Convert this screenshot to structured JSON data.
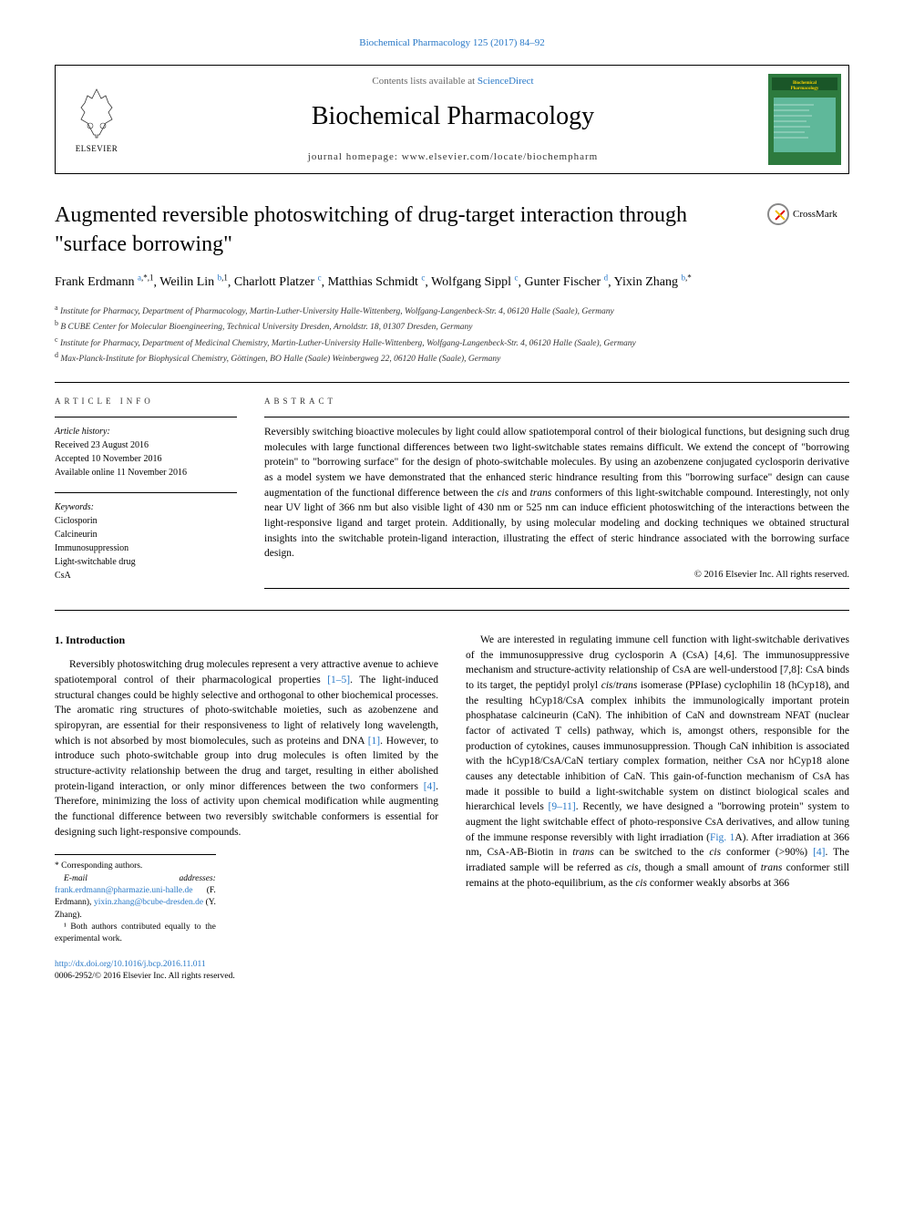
{
  "topLink": {
    "text": "Biochemical Pharmacology 125 (2017) 84–92"
  },
  "header": {
    "contentsText": "Contents lists available at ",
    "contentsLink": "ScienceDirect",
    "journalTitle": "Biochemical Pharmacology",
    "homepageText": "journal homepage: www.elsevier.com/locate/biochempharm",
    "elsevierLabel": "ELSEVIER"
  },
  "article": {
    "title": "Augmented reversible photoswitching of drug-target interaction through \"surface borrowing\"",
    "crossmarkLabel": "CrossMark"
  },
  "authors": [
    {
      "name": "Frank Erdmann",
      "sup": "a,*,1"
    },
    {
      "name": "Weilin Lin",
      "sup": "b,1"
    },
    {
      "name": "Charlott Platzer",
      "sup": "c"
    },
    {
      "name": "Matthias Schmidt",
      "sup": "c"
    },
    {
      "name": "Wolfgang Sippl",
      "sup": "c"
    },
    {
      "name": "Gunter Fischer",
      "sup": "d"
    },
    {
      "name": "Yixin Zhang",
      "sup": "b,*"
    }
  ],
  "affiliations": [
    {
      "sup": "a",
      "text": "Institute for Pharmacy, Department of Pharmacology, Martin-Luther-University Halle-Wittenberg, Wolfgang-Langenbeck-Str. 4, 06120 Halle (Saale), Germany"
    },
    {
      "sup": "b",
      "text": "B CUBE Center for Molecular Bioengineering, Technical University Dresden, Arnoldstr. 18, 01307 Dresden, Germany"
    },
    {
      "sup": "c",
      "text": "Institute for Pharmacy, Department of Medicinal Chemistry, Martin-Luther-University Halle-Wittenberg, Wolfgang-Langenbeck-Str. 4, 06120 Halle (Saale), Germany"
    },
    {
      "sup": "d",
      "text": "Max-Planck-Institute for Biophysical Chemistry, Göttingen, BO Halle (Saale) Weinbergweg 22, 06120 Halle (Saale), Germany"
    }
  ],
  "articleInfo": {
    "heading": "ARTICLE INFO",
    "historyLabel": "Article history:",
    "history": [
      "Received 23 August 2016",
      "Accepted 10 November 2016",
      "Available online 11 November 2016"
    ],
    "keywordsLabel": "Keywords:",
    "keywords": [
      "Ciclosporin",
      "Calcineurin",
      "Immunosuppression",
      "Light-switchable drug",
      "CsA"
    ]
  },
  "abstract": {
    "heading": "ABSTRACT",
    "text": "Reversibly switching bioactive molecules by light could allow spatiotemporal control of their biological functions, but designing such drug molecules with large functional differences between two light-switchable states remains difficult. We extend the concept of \"borrowing protein\" to \"borrowing surface\" for the design of photo-switchable molecules. By using an azobenzene conjugated cyclosporin derivative as a model system we have demonstrated that the enhanced steric hindrance resulting from this \"borrowing surface\" design can cause augmentation of the functional difference between the cis and trans conformers of this light-switchable compound. Interestingly, not only near UV light of 366 nm but also visible light of 430 nm or 525 nm can induce efficient photoswitching of the interactions between the light-responsive ligand and target protein. Additionally, by using molecular modeling and docking techniques we obtained structural insights into the switchable protein-ligand interaction, illustrating the effect of steric hindrance associated with the borrowing surface design.",
    "copyright": "© 2016 Elsevier Inc. All rights reserved."
  },
  "introduction": {
    "heading": "1. Introduction",
    "col1": "Reversibly photoswitching drug molecules represent a very attractive avenue to achieve spatiotemporal control of their pharmacological properties [1–5]. The light-induced structural changes could be highly selective and orthogonal to other biochemical processes. The aromatic ring structures of photo-switchable moieties, such as azobenzene and spiropyran, are essential for their responsiveness to light of relatively long wavelength, which is not absorbed by most biomolecules, such as proteins and DNA [1]. However, to introduce such photo-switchable group into drug molecules is often limited by the structure-activity relationship between the drug and target, resulting in either abolished protein-ligand interaction, or only minor differences between the two conformers [4]. Therefore, minimizing the loss of activity upon chemical modification while augmenting the functional difference between two reversibly switchable conformers is essential for designing such light-responsive compounds.",
    "col2": "We are interested in regulating immune cell function with light-switchable derivatives of the immunosuppressive drug cyclosporin A (CsA) [4,6]. The immunosuppressive mechanism and structure-activity relationship of CsA are well-understood [7,8]: CsA binds to its target, the peptidyl prolyl cis/trans isomerase (PPIase) cyclophilin 18 (hCyp18), and the resulting hCyp18/CsA complex inhibits the immunologically important protein phosphatase calcineurin (CaN). The inhibition of CaN and downstream NFAT (nuclear factor of activated T cells) pathway, which is, amongst others, responsible for the production of cytokines, causes immunosuppression. Though CaN inhibition is associated with the hCyp18/CsA/CaN tertiary complex formation, neither CsA nor hCyp18 alone causes any detectable inhibition of CaN. This gain-of-function mechanism of CsA has made it possible to build a light-switchable system on distinct biological scales and hierarchical levels [9–11]. Recently, we have designed a \"borrowing protein\" system to augment the light switchable effect of photo-responsive CsA derivatives, and allow tuning of the immune response reversibly with light irradiation (Fig. 1A). After irradiation at 366 nm, CsA-AB-Biotin in trans can be switched to the cis conformer (>90%) [4]. The irradiated sample will be referred as cis, though a small amount of trans conformer still remains at the photo-equilibrium, as the cis conformer weakly absorbs at 366"
  },
  "footnotes": {
    "correspondingLabel": "* Corresponding authors.",
    "emailLabel": "E-mail addresses:",
    "email1": "frank.erdmann@pharmazie.uni-halle.de",
    "email1Name": "(F. Erdmann),",
    "email2": "yixin.zhang@bcube-dresden.de",
    "email2Name": "(Y. Zhang).",
    "note1": "¹ Both authors contributed equally to the experimental work."
  },
  "footer": {
    "doi": "http://dx.doi.org/10.1016/j.bcp.2016.11.011",
    "copyright": "0006-2952/© 2016 Elsevier Inc. All rights reserved."
  },
  "colors": {
    "link": "#2878c7",
    "text": "#000000",
    "bg": "#ffffff",
    "coverGreen": "#2d7a3e",
    "coverTeal": "#5fb89a"
  }
}
